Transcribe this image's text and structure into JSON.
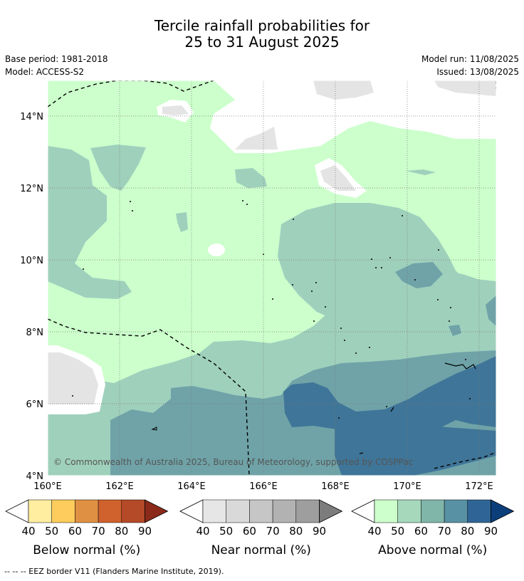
{
  "title": {
    "line1": "Tercile rainfall probabilities for",
    "line2": "25 to 31 August 2025"
  },
  "meta": {
    "base_period": "Base period: 1981-2018",
    "model": "Model: ACCESS-S2",
    "model_run": "Model run: 11/08/2025",
    "issued": "Issued: 13/08/2025"
  },
  "map": {
    "lat_labels": [
      "14°N",
      "12°N",
      "10°N",
      "8°N",
      "6°N",
      "4°N"
    ],
    "lon_labels": [
      "160°E",
      "162°E",
      "164°E",
      "166°E",
      "168°E",
      "170°E",
      "172°E"
    ],
    "copyright": "© Commonwealth of Australia 2025, Bureau of Meteorology, supported by COSPPac"
  },
  "colorbars": [
    {
      "label": "Below normal (%)",
      "ticks": [
        "40",
        "50",
        "60",
        "70",
        "80",
        "90"
      ],
      "colors": [
        "#ffffff",
        "#ffeda0",
        "#fecc5c",
        "#e09043",
        "#d0622e",
        "#b54a28",
        "#8b2a1a"
      ]
    },
    {
      "label": "Near normal (%)",
      "ticks": [
        "40",
        "50",
        "60",
        "70",
        "80",
        "90"
      ],
      "colors": [
        "#ffffff",
        "#e6e6e6",
        "#d9d9d9",
        "#c6c6c6",
        "#b2b2b2",
        "#9e9e9e",
        "#7c7c7c"
      ]
    },
    {
      "label": "Above normal (%)",
      "ticks": [
        "40",
        "50",
        "60",
        "70",
        "80",
        "90"
      ],
      "colors": [
        "#ffffff",
        "#ccffcc",
        "#a6d8bc",
        "#80b6aa",
        "#5891a3",
        "#2f6596",
        "#0c3f7a"
      ]
    }
  ],
  "footer": "--  --  -- EEZ border V11 (Flanders Marine Institute, 2019).",
  "palette": {
    "near_normal_fill": "#e4e4e4",
    "above_50": "#ccffcc",
    "above_60": "#9fd0bc",
    "above_70": "#6fa3a8",
    "above_80": "#3f7598",
    "neutral": "#ffffff"
  }
}
